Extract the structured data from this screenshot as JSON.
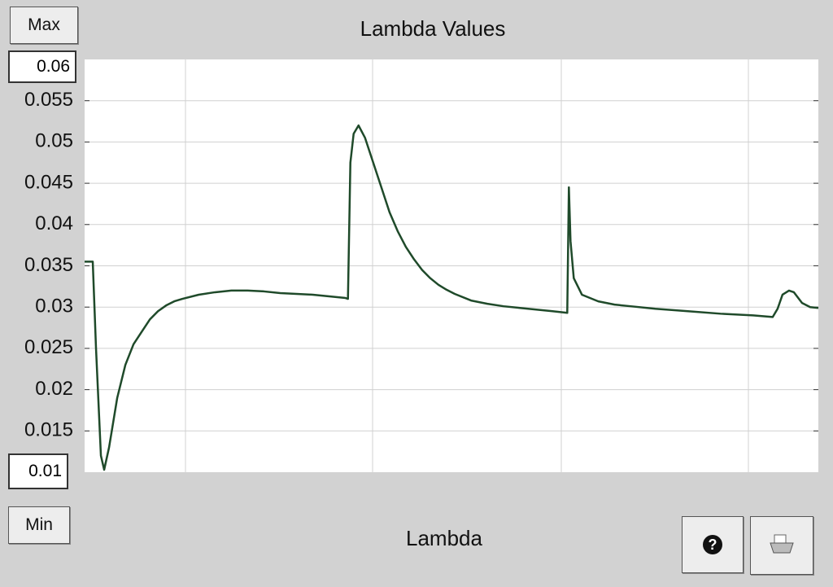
{
  "buttons": {
    "max": "Max",
    "min": "Min"
  },
  "chart_data": {
    "type": "line",
    "title": "Lambda Values",
    "x_label": "Lambda",
    "ylim": [
      0.01,
      0.06
    ],
    "yticks": [
      0.015,
      0.02,
      0.025,
      0.03,
      0.035,
      0.04,
      0.045,
      0.05,
      0.055
    ],
    "xlim": [
      0,
      900
    ],
    "grid": true,
    "series": [
      {
        "color": "#1f4a2a",
        "x": [
          0,
          10,
          14,
          20,
          24,
          30,
          40,
          50,
          60,
          70,
          80,
          90,
          100,
          110,
          120,
          140,
          160,
          180,
          200,
          220,
          240,
          260,
          280,
          300,
          320,
          323,
          326,
          330,
          336,
          344,
          354,
          364,
          374,
          384,
          394,
          404,
          414,
          424,
          434,
          444,
          454,
          474,
          494,
          514,
          534,
          554,
          574,
          592,
          594,
          596,
          600,
          610,
          630,
          650,
          670,
          700,
          740,
          780,
          820,
          844,
          850,
          856,
          864,
          870,
          880,
          890,
          900
        ],
        "values": [
          0.0355,
          0.0355,
          0.025,
          0.012,
          0.0103,
          0.013,
          0.019,
          0.023,
          0.0255,
          0.027,
          0.0285,
          0.0295,
          0.0302,
          0.0307,
          0.031,
          0.0315,
          0.0318,
          0.032,
          0.032,
          0.0319,
          0.0317,
          0.0316,
          0.0315,
          0.0313,
          0.0311,
          0.031,
          0.0475,
          0.051,
          0.052,
          0.0505,
          0.0475,
          0.0445,
          0.0415,
          0.0392,
          0.0373,
          0.0358,
          0.0345,
          0.0335,
          0.0327,
          0.0321,
          0.0316,
          0.0308,
          0.0304,
          0.0301,
          0.0299,
          0.0297,
          0.0295,
          0.0293,
          0.0445,
          0.038,
          0.0335,
          0.0315,
          0.0307,
          0.0303,
          0.0301,
          0.0298,
          0.0295,
          0.0292,
          0.029,
          0.0288,
          0.0298,
          0.0315,
          0.032,
          0.0318,
          0.0305,
          0.03,
          0.0299
        ]
      }
    ]
  }
}
